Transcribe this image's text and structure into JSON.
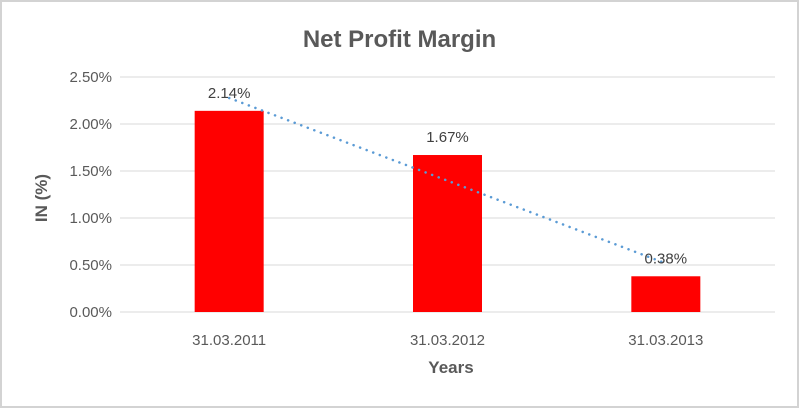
{
  "chart_data": {
    "type": "bar",
    "title": "Net Profit Margin",
    "xlabel": "Years",
    "ylabel": "IN (%)",
    "categories": [
      "31.03.2011",
      "31.03.2012",
      "31.03.2013"
    ],
    "series": [
      {
        "name": "Net Profit Margin",
        "values": [
          2.14,
          1.67,
          0.38
        ]
      }
    ],
    "data_labels": [
      "2.14%",
      "1.67%",
      "0.38%"
    ],
    "y_ticks": [
      {
        "value": 0.0,
        "label": "0.00%"
      },
      {
        "value": 0.5,
        "label": "0.50%"
      },
      {
        "value": 1.0,
        "label": "1.00%"
      },
      {
        "value": 1.5,
        "label": "1.50%"
      },
      {
        "value": 2.0,
        "label": "2.00%"
      },
      {
        "value": 2.5,
        "label": "2.50%"
      }
    ],
    "ylim": [
      0,
      2.5
    ],
    "grid": true,
    "legend": "none",
    "colors": {
      "bar": "#FF0000",
      "gridline": "#D9D9D9",
      "axis_text": "#595959",
      "data_label": "#404040",
      "title_text": "#595959",
      "frame_border": "#D3D3D3",
      "background": "#FFFFFF"
    },
    "trendline": {
      "type": "linear",
      "style": "dotted",
      "color": "#5B9BD5"
    }
  }
}
